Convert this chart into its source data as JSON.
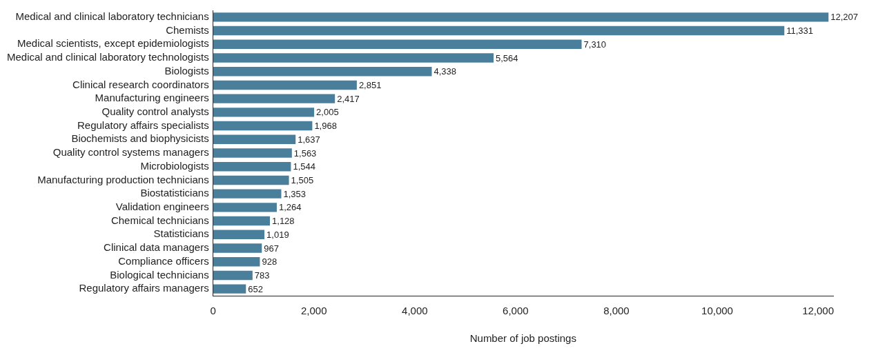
{
  "chart_data": {
    "type": "bar",
    "orientation": "horizontal",
    "xlabel": "Number of job postings",
    "categories": [
      "Medical and clinical laboratory technicians",
      "Chemists",
      "Medical scientists, except epidemiologists",
      "Medical and clinical laboratory technologists",
      "Biologists",
      "Clinical research coordinators",
      "Manufacturing engineers",
      "Quality control analysts",
      "Regulatory affairs specialists",
      "Biochemists and biophysicists",
      "Quality control systems managers",
      "Microbiologists",
      "Manufacturing production technicians",
      "Biostatisticians",
      "Validation engineers",
      "Chemical technicians",
      "Statisticians",
      "Clinical data managers",
      "Compliance officers",
      "Biological technicians",
      "Regulatory affairs managers"
    ],
    "values": [
      12207,
      11331,
      7310,
      5564,
      4338,
      2851,
      2417,
      2005,
      1968,
      1637,
      1563,
      1544,
      1505,
      1353,
      1264,
      1128,
      1019,
      967,
      928,
      783,
      652
    ],
    "value_labels": [
      "12,207",
      "11,331",
      "7,310",
      "5,564",
      "4,338",
      "2,851",
      "2,417",
      "2,005",
      "1,968",
      "1,637",
      "1,563",
      "1,544",
      "1,505",
      "1,353",
      "1,264",
      "1,128",
      "1,019",
      "967",
      "928",
      "783",
      "652"
    ],
    "color": "#4a7f9c",
    "xlim": [
      0,
      12300
    ],
    "xticks": [
      {
        "value": 0,
        "label": "0"
      },
      {
        "value": 2000,
        "label": "2,000"
      },
      {
        "value": 4000,
        "label": "4,000"
      },
      {
        "value": 6000,
        "label": "6,000"
      },
      {
        "value": 8000,
        "label": "8,000"
      },
      {
        "value": 10000,
        "label": "10,000"
      },
      {
        "value": 12000,
        "label": "12,000"
      }
    ],
    "grid": false,
    "legend": false
  }
}
